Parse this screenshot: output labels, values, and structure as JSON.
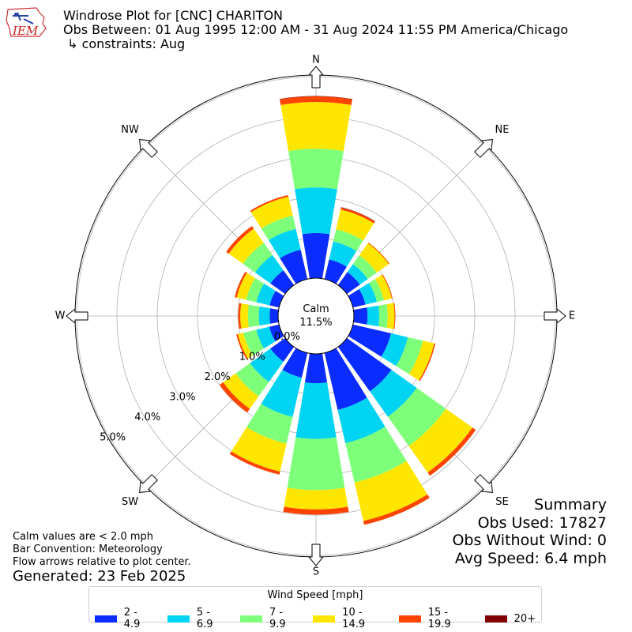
{
  "logo": {
    "text": "IEM"
  },
  "header": {
    "title": "Windrose Plot for [CNC] CHARITON",
    "subtitle": "Obs Between: 01 Aug 1995 12:00 AM - 31 Aug 2024 11:55 PM America/Chicago",
    "constraints": " ↳ constraints: Aug"
  },
  "chart_data": {
    "type": "windrose",
    "calm": {
      "label": "Calm",
      "value_text": "11.5%",
      "value": 11.5
    },
    "directions": [
      "N",
      "NNE",
      "NE",
      "ENE",
      "E",
      "ESE",
      "SE",
      "SSE",
      "S",
      "SSW",
      "SW",
      "WSW",
      "W",
      "WNW",
      "NW",
      "NNW"
    ],
    "direction_labels": [
      "N",
      "NE",
      "E",
      "SE",
      "S",
      "SW",
      "W",
      "NW"
    ],
    "radial_ticks": [
      "0.0%",
      "1.0%",
      "2.0%",
      "3.0%",
      "4.0%",
      "5.0%"
    ],
    "speed_bins": [
      {
        "label": "2 - 4.9",
        "color": "#0a2cff"
      },
      {
        "label": "5 - 6.9",
        "color": "#00d4f2"
      },
      {
        "label": "7 - 9.9",
        "color": "#7dff7a"
      },
      {
        "label": "10 - 14.9",
        "color": "#ffe600"
      },
      {
        "label": "15 - 19.9",
        "color": "#ff4400"
      },
      {
        "label": "20+",
        "color": "#800000"
      }
    ],
    "bars": [
      [
        1.12,
        2.25,
        3.21,
        4.37,
        4.51,
        4.52
      ],
      [
        0.5,
        0.96,
        1.27,
        1.77,
        1.82,
        1.83
      ],
      [
        0.4,
        0.64,
        0.91,
        1.28,
        1.3,
        1.3
      ],
      [
        0.32,
        0.61,
        0.79,
        0.99,
        1.01,
        1.01
      ],
      [
        0.34,
        0.63,
        0.84,
        1.01,
        1.03,
        1.03
      ],
      [
        0.97,
        1.4,
        1.78,
        2.07,
        2.1,
        2.1
      ],
      [
        1.36,
        2.13,
        3.02,
        3.83,
        3.93,
        3.93
      ],
      [
        1.45,
        2.3,
        3.3,
        4.28,
        4.38,
        4.38
      ],
      [
        0.73,
        2.11,
        3.38,
        3.86,
        3.99,
        3.99
      ],
      [
        0.63,
        1.63,
        2.31,
        3.02,
        3.1,
        3.1
      ],
      [
        0.45,
        1.07,
        1.51,
        1.89,
        2.0,
        2.0
      ],
      [
        0.25,
        0.58,
        0.91,
        1.05,
        1.09,
        1.09
      ],
      [
        0.21,
        0.48,
        0.75,
        0.94,
        0.99,
        0.99
      ],
      [
        0.24,
        0.58,
        0.84,
        1.08,
        1.13,
        1.13
      ],
      [
        0.45,
        0.92,
        1.29,
        1.72,
        1.8,
        1.8
      ],
      [
        0.75,
        1.28,
        1.62,
        2.1,
        2.14,
        2.14
      ]
    ],
    "legend": {
      "title": "Wind Speed [mph]",
      "placement": "bottom-center"
    }
  },
  "notes": {
    "calm": "Calm values are < 2.0 mph",
    "convention": "Bar Convention: Meteorology",
    "flow": "Flow arrows relative to plot center."
  },
  "generated": "Generated: 23 Feb 2025",
  "summary": {
    "title": "Summary",
    "obs_used": "Obs Used: 17827",
    "obs_without_wind": "Obs Without Wind: 0",
    "avg_speed": "Avg Speed: 6.4 mph"
  }
}
